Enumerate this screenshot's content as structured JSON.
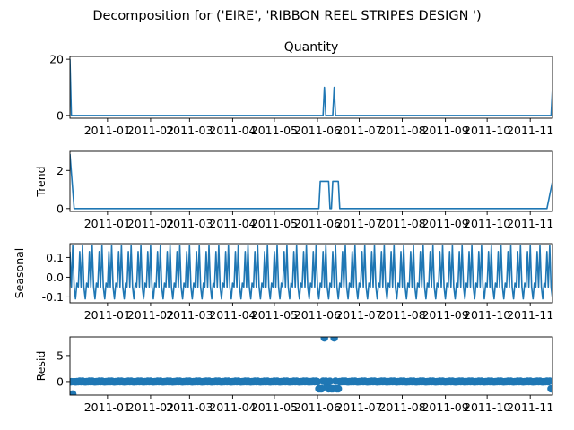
{
  "title": "Decomposition for ('EIRE', 'RIBBON REEL STRIPES DESIGN ')",
  "chart_data": [
    {
      "type": "line",
      "title": "Quantity",
      "ylabel": "",
      "ylim": [
        -1,
        21
      ],
      "yticks": [
        0,
        20
      ],
      "x_start": "2010-12-05",
      "x_end": "2011-11-17",
      "xticks": [
        "2011-01",
        "2011-02",
        "2011-03",
        "2011-04",
        "2011-05",
        "2011-06",
        "2011-07",
        "2011-08",
        "2011-09",
        "2011-10",
        "2011-11"
      ],
      "values": [
        {
          "x": "2010-12-05",
          "y": 20
        },
        {
          "x": "2010-12-06",
          "y": 0
        },
        {
          "x": "2011-06-05",
          "y": 0
        },
        {
          "x": "2011-06-06",
          "y": 10
        },
        {
          "x": "2011-06-07",
          "y": 0
        },
        {
          "x": "2011-06-12",
          "y": 0
        },
        {
          "x": "2011-06-13",
          "y": 10
        },
        {
          "x": "2011-06-14",
          "y": 0
        },
        {
          "x": "2011-11-16",
          "y": 0
        },
        {
          "x": "2011-11-17",
          "y": 10
        }
      ]
    },
    {
      "type": "line",
      "title": "",
      "ylabel": "Trend",
      "ylim": [
        -0.15,
        3.0
      ],
      "yticks": [
        0,
        2
      ],
      "x_start": "2010-12-05",
      "x_end": "2011-11-17",
      "xticks": [
        "2011-01",
        "2011-02",
        "2011-03",
        "2011-04",
        "2011-05",
        "2011-06",
        "2011-07",
        "2011-08",
        "2011-09",
        "2011-10",
        "2011-11"
      ],
      "values": [
        {
          "x": "2010-12-05",
          "y": 2.86
        },
        {
          "x": "2010-12-08",
          "y": 0
        },
        {
          "x": "2011-06-02",
          "y": 0
        },
        {
          "x": "2011-06-03",
          "y": 1.43
        },
        {
          "x": "2011-06-09",
          "y": 1.43
        },
        {
          "x": "2011-06-10",
          "y": 0
        },
        {
          "x": "2011-06-11",
          "y": 0
        },
        {
          "x": "2011-06-12",
          "y": 1.43
        },
        {
          "x": "2011-06-16",
          "y": 1.43
        },
        {
          "x": "2011-06-17",
          "y": 0
        },
        {
          "x": "2011-11-13",
          "y": 0
        },
        {
          "x": "2011-11-17",
          "y": 1.43
        }
      ]
    },
    {
      "type": "line",
      "title": "",
      "ylabel": "Seasonal",
      "ylim": [
        -0.13,
        0.17
      ],
      "yticks": [
        -0.1,
        0.0,
        0.1
      ],
      "x_start": "2010-12-05",
      "x_end": "2011-11-17",
      "xticks": [
        "2011-01",
        "2011-02",
        "2011-03",
        "2011-04",
        "2011-05",
        "2011-06",
        "2011-07",
        "2011-08",
        "2011-09",
        "2011-10",
        "2011-11"
      ],
      "period_days": 7,
      "weekly_pattern": [
        0.13,
        -0.05,
        0.16,
        -0.05,
        -0.11,
        -0.03,
        -0.05
      ]
    },
    {
      "type": "scatter",
      "title": "",
      "ylabel": "Resid",
      "ylim": [
        -2.6,
        8.6
      ],
      "yticks": [
        0,
        5
      ],
      "x_start": "2010-12-05",
      "x_end": "2011-11-17",
      "xticks": [
        "2011-01",
        "2011-02",
        "2011-03",
        "2011-04",
        "2011-05",
        "2011-06",
        "2011-07",
        "2011-08",
        "2011-09",
        "2011-10",
        "2011-11"
      ],
      "zero_line": true,
      "points": [
        {
          "x": "2010-12-05",
          "y": -0.05
        },
        {
          "x": "2010-12-07",
          "y": -2.4
        },
        {
          "x": "2011-06-02",
          "y": -1.4
        },
        {
          "x": "2011-06-03",
          "y": -1.4
        },
        {
          "x": "2011-06-04",
          "y": -1.4
        },
        {
          "x": "2011-06-06",
          "y": 8.4
        },
        {
          "x": "2011-06-08",
          "y": -0.8
        },
        {
          "x": "2011-06-09",
          "y": -1.4
        },
        {
          "x": "2011-06-10",
          "y": 0.05
        },
        {
          "x": "2011-06-11",
          "y": -1.4
        },
        {
          "x": "2011-06-12",
          "y": -1.4
        },
        {
          "x": "2011-06-13",
          "y": 8.4
        },
        {
          "x": "2011-06-15",
          "y": -1.4
        },
        {
          "x": "2011-06-16",
          "y": -1.4
        },
        {
          "x": "2011-11-16",
          "y": -1.4
        },
        {
          "x": "2011-11-17",
          "y": -1.4
        }
      ],
      "background_resid_weekly_pattern": [
        0.13,
        -0.05,
        0.16,
        -0.05,
        -0.11,
        -0.03,
        -0.05
      ]
    }
  ]
}
